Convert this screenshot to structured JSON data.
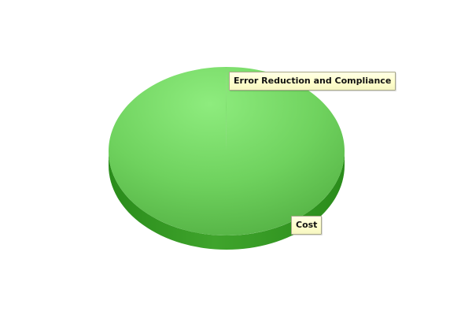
{
  "chart_data": {
    "type": "pie",
    "style": "3d",
    "title": "",
    "legend": "none",
    "categories": [
      "Error Reduction and Compliance",
      "Cost"
    ],
    "values": [
      99.9,
      0.1
    ],
    "colors": {
      "top_highlight": "#8eec7e",
      "top_mid": "#6fd25e",
      "top_edge": "#53b043",
      "side_light": "#3fa42c",
      "side_dark": "#2a8c1b"
    }
  }
}
